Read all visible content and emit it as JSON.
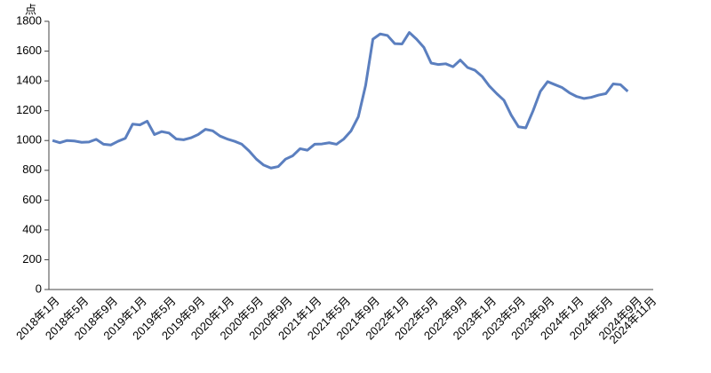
{
  "chart_data": {
    "type": "line",
    "y_unit": "点",
    "categories": [
      "2018年1月",
      null,
      null,
      null,
      "2018年5月",
      null,
      null,
      null,
      "2018年9月",
      null,
      null,
      null,
      "2019年1月",
      null,
      null,
      null,
      "2019年5月",
      null,
      null,
      null,
      "2019年9月",
      null,
      null,
      null,
      "2020年1月",
      null,
      null,
      null,
      "2020年5月",
      null,
      null,
      null,
      "2020年9月",
      null,
      null,
      null,
      "2021年1月",
      null,
      null,
      null,
      "2021年5月",
      null,
      null,
      null,
      "2021年9月",
      null,
      null,
      null,
      "2022年1月",
      null,
      null,
      null,
      "2022年5月",
      null,
      null,
      null,
      "2022年9月",
      null,
      null,
      null,
      "2023年1月",
      null,
      null,
      null,
      "2023年5月",
      null,
      null,
      null,
      "2023年9月",
      null,
      null,
      null,
      "2024年1月",
      null,
      null,
      null,
      "2024年5月",
      null,
      null,
      null,
      "2024年9月",
      null,
      "2024年11月"
    ],
    "values": [
      1000,
      985,
      1000,
      997,
      988,
      990,
      1008,
      975,
      970,
      995,
      1015,
      1110,
      1105,
      1130,
      1040,
      1060,
      1050,
      1010,
      1005,
      1018,
      1040,
      1075,
      1065,
      1030,
      1010,
      995,
      975,
      930,
      875,
      835,
      815,
      825,
      875,
      898,
      945,
      935,
      975,
      977,
      985,
      975,
      1010,
      1065,
      1160,
      1370,
      1680,
      1715,
      1705,
      1650,
      1648,
      1725,
      1680,
      1625,
      1520,
      1510,
      1515,
      1495,
      1540,
      1490,
      1472,
      1430,
      1365,
      1315,
      1270,
      1170,
      1092,
      1085,
      1200,
      1330,
      1395,
      1375,
      1355,
      1320,
      1295,
      1282,
      1290,
      1305,
      1315,
      1380,
      1375,
      1330,
      null,
      null,
      null
    ],
    "color": "#5b7fbf",
    "ylim": [
      0,
      1800
    ],
    "yticks": [
      0,
      200,
      400,
      600,
      800,
      1000,
      1200,
      1400,
      1600,
      1800
    ]
  }
}
